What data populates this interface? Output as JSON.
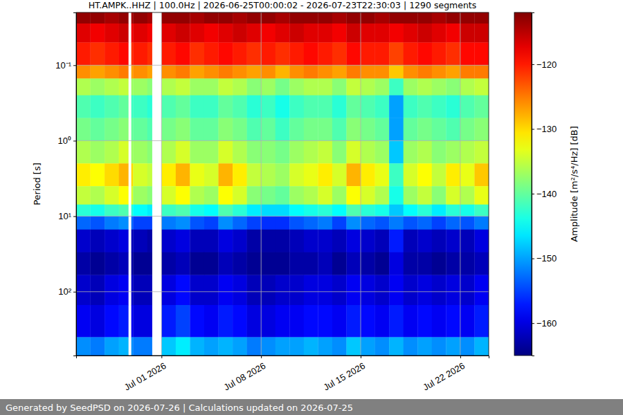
{
  "chart_data": {
    "type": "heatmap",
    "title": "HT.AMPK..HHZ | 100.0Hz | 2026-06-25T00:00:02 - 2026-07-23T22:30:03 | 1290 segments",
    "y_label": "Period [s]",
    "log": "y",
    "grid": true,
    "x": [
      "2026-06-25T00:00",
      "2026-06-26T00:00",
      "2026-06-27T00:00",
      "2026-06-28T00:00",
      "2026-06-28T16:00",
      "2026-06-28T21:00",
      "2026-06-29T00:00",
      "2026-06-30T00:00",
      "2026-06-30T08:00",
      "2026-07-01T00:00",
      "2026-07-02T00:00",
      "2026-07-03T00:00",
      "2026-07-04T00:00",
      "2026-07-05T00:00",
      "2026-07-06T00:00",
      "2026-07-07T00:00",
      "2026-07-08T00:00",
      "2026-07-09T00:00",
      "2026-07-10T00:00",
      "2026-07-11T00:00",
      "2026-07-12T00:00",
      "2026-07-13T00:00",
      "2026-07-14T00:00",
      "2026-07-15T00:00",
      "2026-07-16T00:00",
      "2026-07-17T00:00",
      "2026-07-18T00:00",
      "2026-07-19T00:00",
      "2026-07-20T00:00",
      "2026-07-21T00:00",
      "2026-07-22T00:00",
      "2026-07-23T00:00",
      "2026-07-24T00:00"
    ],
    "xlim": [
      "2026-06-25T00:00",
      "2026-07-24T00:00"
    ],
    "xticks": [
      {
        "value": "2026-07-01T00:00",
        "label": "Jul 01 2026"
      },
      {
        "value": "2026-07-08T00:00",
        "label": "Jul 08 2026"
      },
      {
        "value": "2026-07-15T00:00",
        "label": "Jul 15 2026"
      },
      {
        "value": "2026-07-22T00:00",
        "label": "Jul 22 2026"
      }
    ],
    "y": [
      0.02,
      0.028,
      0.05,
      0.1,
      0.15,
      0.25,
      0.5,
      1,
      2,
      4,
      7,
      10,
      15,
      30,
      60,
      150,
      400,
      700
    ],
    "ylim": [
      0.02,
      700
    ],
    "yticks": [
      {
        "value": 0.1,
        "label": "10⁻¹"
      },
      {
        "value": 1,
        "label": "10⁰"
      },
      {
        "value": 10,
        "label": "10¹"
      },
      {
        "value": 100,
        "label": "10²"
      }
    ],
    "cells": [
      [
        -113,
        -113,
        -114,
        -113,
        null,
        -114,
        -113,
        -114,
        null,
        -113,
        -113,
        -114,
        -113,
        -113,
        -114,
        -113,
        -113,
        -114,
        -113,
        -113,
        -113,
        -114,
        -113,
        -113,
        -114,
        -113,
        -113,
        -113,
        -114,
        -113,
        -113,
        -113
      ],
      [
        -117,
        -118,
        -117,
        -116,
        null,
        -118,
        -117,
        -118,
        null,
        -117,
        -116,
        -117,
        -118,
        -117,
        -116,
        -117,
        -118,
        -117,
        -116,
        -117,
        -117,
        -118,
        -116,
        -117,
        -117,
        -118,
        -117,
        -116,
        -117,
        -118,
        -116,
        -116
      ],
      [
        -120,
        -121,
        -120,
        -119,
        null,
        -121,
        -120,
        -121,
        null,
        -120,
        -119,
        -121,
        -120,
        -119,
        -120,
        -121,
        -120,
        -121,
        -120,
        -119,
        -120,
        -121,
        -119,
        -120,
        -120,
        -122,
        -120,
        -119,
        -120,
        -121,
        -119,
        -119
      ],
      [
        -126,
        -127,
        -126,
        -125,
        null,
        -127,
        -126,
        -127,
        null,
        -126,
        -125,
        -127,
        -126,
        -125,
        -126,
        -127,
        -126,
        -128,
        -126,
        -125,
        -126,
        -127,
        -125,
        -126,
        -126,
        -129,
        -126,
        -125,
        -126,
        -127,
        -125,
        -125
      ],
      [
        -136,
        -137,
        -136,
        -135,
        null,
        -137,
        -137,
        -138,
        null,
        -136,
        -135,
        -137,
        -137,
        -135,
        -136,
        -138,
        -137,
        -139,
        -137,
        -136,
        -136,
        -138,
        -135,
        -136,
        -137,
        -142,
        -137,
        -136,
        -137,
        -138,
        -136,
        -135
      ],
      [
        -141,
        -142,
        -141,
        -140,
        null,
        -142,
        -142,
        -143,
        null,
        -141,
        -140,
        -142,
        -142,
        -140,
        -141,
        -143,
        -142,
        -144,
        -142,
        -141,
        -141,
        -143,
        -140,
        -141,
        -142,
        -150,
        -142,
        -141,
        -142,
        -143,
        -141,
        -140
      ],
      [
        -139,
        -140,
        -139,
        -138,
        null,
        -140,
        -140,
        -141,
        null,
        -139,
        -138,
        -140,
        -140,
        -138,
        -139,
        -141,
        -140,
        -142,
        -140,
        -139,
        -139,
        -141,
        -138,
        -139,
        -140,
        -150,
        -140,
        -139,
        -140,
        -141,
        -139,
        -138
      ],
      [
        -136,
        -137,
        -136,
        -134,
        null,
        -137,
        -137,
        -138,
        null,
        -136,
        -134,
        -137,
        -137,
        -134,
        -136,
        -138,
        -138,
        -139,
        -137,
        -136,
        -135,
        -138,
        -134,
        -136,
        -137,
        -148,
        -137,
        -136,
        -138,
        -137,
        -136,
        -135
      ],
      [
        -131,
        -132,
        -130,
        -128,
        null,
        -130,
        -134,
        -135,
        null,
        -131,
        -128,
        -133,
        -134,
        -128,
        -131,
        -135,
        -136,
        -137,
        -134,
        -133,
        -131,
        -134,
        -128,
        -131,
        -133,
        -142,
        -134,
        -132,
        -135,
        -131,
        -133,
        -129
      ],
      [
        -135,
        -136,
        -134,
        -132,
        null,
        -134,
        -137,
        -138,
        null,
        -134,
        -132,
        -136,
        -137,
        -132,
        -134,
        -138,
        -139,
        -140,
        -137,
        -136,
        -134,
        -137,
        -132,
        -134,
        -136,
        -144,
        -137,
        -135,
        -138,
        -134,
        -136,
        -133
      ],
      [
        -143,
        -144,
        -142,
        -141,
        null,
        -143,
        -145,
        -146,
        null,
        -142,
        -141,
        -144,
        -145,
        -141,
        -143,
        -146,
        -147,
        -147,
        -145,
        -144,
        -143,
        -145,
        -141,
        -143,
        -144,
        -148,
        -145,
        -143,
        -146,
        -143,
        -144,
        -142
      ],
      [
        -153,
        -154,
        -152,
        -151,
        null,
        -153,
        -155,
        -155,
        null,
        -152,
        -151,
        -154,
        -155,
        -151,
        -153,
        -155,
        -156,
        -156,
        -154,
        -153,
        -152,
        -155,
        -151,
        -153,
        -154,
        -152,
        -154,
        -153,
        -155,
        -153,
        -154,
        -152
      ],
      [
        -161,
        -162,
        -161,
        -160,
        null,
        -162,
        -162,
        -163,
        null,
        -161,
        -160,
        -162,
        -162,
        -160,
        -161,
        -163,
        -163,
        -163,
        -162,
        -161,
        -161,
        -162,
        -160,
        -161,
        -162,
        -157,
        -162,
        -161,
        -162,
        -161,
        -162,
        -160
      ],
      [
        -163,
        -164,
        -163,
        -162,
        null,
        -163,
        -164,
        -164,
        null,
        -163,
        -162,
        -164,
        -164,
        -162,
        -163,
        -164,
        -164,
        -164,
        -163,
        -163,
        -162,
        -164,
        -162,
        -163,
        -164,
        -160,
        -163,
        -163,
        -164,
        -163,
        -163,
        -162
      ],
      [
        -161,
        -162,
        -160,
        -159,
        null,
        -161,
        -162,
        -162,
        null,
        -160,
        -158,
        -161,
        -161,
        -159,
        -160,
        -162,
        -162,
        -161,
        -161,
        -160,
        -160,
        -161,
        -159,
        -160,
        -161,
        -159,
        -161,
        -160,
        -161,
        -160,
        -161,
        -159
      ],
      [
        -159,
        -160,
        -158,
        -157,
        null,
        -159,
        -160,
        -160,
        null,
        -157,
        -155,
        -158,
        -159,
        -157,
        -158,
        -160,
        -160,
        -159,
        -159,
        -158,
        -158,
        -159,
        -157,
        -158,
        -159,
        -157,
        -159,
        -158,
        -159,
        -158,
        -159,
        -157
      ],
      [
        -151,
        -152,
        -150,
        -149,
        null,
        -151,
        -152,
        -152,
        null,
        -148,
        -146,
        -149,
        -150,
        -149,
        -150,
        -152,
        -151,
        -150,
        -150,
        -149,
        -150,
        -151,
        -148,
        -150,
        -151,
        -149,
        -151,
        -150,
        -151,
        -150,
        -151,
        -149
      ]
    ],
    "colorbar": {
      "label": "Amplitude [m²/s⁴/Hz] [dB]",
      "range": [
        -165,
        -112
      ],
      "ticks": [
        {
          "value": -120,
          "label": "−120"
        },
        {
          "value": -130,
          "label": "−130"
        },
        {
          "value": -140,
          "label": "−140"
        },
        {
          "value": -150,
          "label": "−150"
        },
        {
          "value": -160,
          "label": "−160"
        }
      ]
    },
    "footer": "Generated by SeedPSD on 2026-07-26 | Calculations updated on 2026-07-25"
  }
}
